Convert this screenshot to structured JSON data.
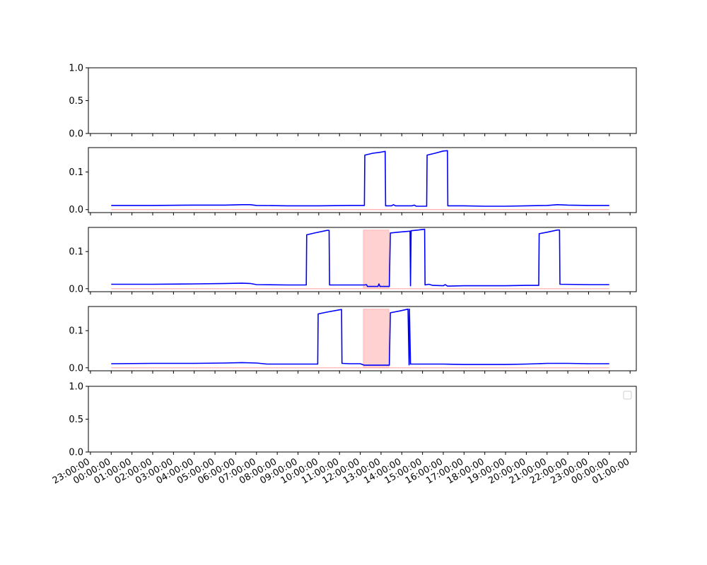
{
  "chart_data": {
    "type": "line",
    "shared_x": true,
    "x_tick_labels": [
      "23:00:00",
      "00:00:00",
      "01:00:00",
      "02:00:00",
      "03:00:00",
      "04:00:00",
      "05:00:00",
      "06:00:00",
      "07:00:00",
      "08:00:00",
      "09:00:00",
      "10:00:00",
      "11:00:00",
      "12:00:00",
      "13:00:00",
      "14:00:00",
      "15:00:00",
      "16:00:00",
      "17:00:00",
      "18:00:00",
      "19:00:00",
      "20:00:00",
      "21:00:00",
      "22:00:00",
      "23:00:00",
      "00:00:00",
      "01:00:00"
    ],
    "x_tick_rotation_deg": 30,
    "xlim_hours": [
      -1.1,
      25.3
    ],
    "line_color": "#0000ff",
    "baseline_color": "#ffaaaa",
    "shade_color": "#ff9999",
    "panels": [
      {
        "id": "panel-1",
        "empty": true,
        "ylim": [
          0,
          1
        ],
        "y_ticks": [
          0,
          0.5,
          1
        ],
        "y_tick_labels": [
          "0.0",
          "0.5",
          "1.0"
        ]
      },
      {
        "id": "panel-2",
        "ylim": [
          -0.008,
          0.165
        ],
        "y_ticks": [
          0,
          0.1
        ],
        "y_tick_labels": [
          "0.0",
          "0.1"
        ],
        "baseline": 0,
        "series": [
          {
            "color": "#0000ff",
            "points": [
              [
                0,
                0.011
              ],
              [
                2,
                0.011
              ],
              [
                4,
                0.012
              ],
              [
                5.5,
                0.012
              ],
              [
                6.3,
                0.013
              ],
              [
                6.7,
                0.013
              ],
              [
                7,
                0.011
              ],
              [
                8.5,
                0.01
              ],
              [
                10,
                0.01
              ],
              [
                11.5,
                0.011
              ],
              [
                12.2,
                0.011
              ],
              [
                12.22,
                0.145
              ],
              [
                12.6,
                0.15
              ],
              [
                13,
                0.153
              ],
              [
                13.2,
                0.155
              ],
              [
                13.22,
                0.01
              ],
              [
                13.5,
                0.01
              ],
              [
                13.6,
                0.013
              ],
              [
                13.7,
                0.01
              ],
              [
                14.5,
                0.01
              ],
              [
                14.6,
                0.012
              ],
              [
                14.7,
                0.009
              ],
              [
                15.2,
                0.009
              ],
              [
                15.22,
                0.145
              ],
              [
                15.6,
                0.15
              ],
              [
                16,
                0.156
              ],
              [
                16.2,
                0.157
              ],
              [
                16.22,
                0.01
              ],
              [
                17,
                0.01
              ],
              [
                18,
                0.009
              ],
              [
                19,
                0.009
              ],
              [
                20,
                0.01
              ],
              [
                21,
                0.011
              ],
              [
                21.5,
                0.013
              ],
              [
                22,
                0.012
              ],
              [
                23,
                0.011
              ],
              [
                24,
                0.011
              ]
            ]
          }
        ],
        "shaded": []
      },
      {
        "id": "panel-3",
        "ylim": [
          -0.008,
          0.165
        ],
        "y_ticks": [
          0,
          0.1
        ],
        "y_tick_labels": [
          "0.0",
          "0.1"
        ],
        "baseline": 0,
        "series": [
          {
            "color": "#0000ff",
            "points": [
              [
                0,
                0.012
              ],
              [
                2,
                0.012
              ],
              [
                4,
                0.013
              ],
              [
                5.5,
                0.014
              ],
              [
                6.3,
                0.015
              ],
              [
                6.7,
                0.014
              ],
              [
                7,
                0.011
              ],
              [
                8.5,
                0.01
              ],
              [
                9.4,
                0.01
              ],
              [
                9.42,
                0.145
              ],
              [
                9.8,
                0.15
              ],
              [
                10.4,
                0.157
              ],
              [
                10.5,
                0.157
              ],
              [
                10.52,
                0.01
              ],
              [
                11,
                0.01
              ],
              [
                12.2,
                0.01
              ],
              [
                12.3,
                0.011
              ],
              [
                12.35,
                0.006
              ],
              [
                12.85,
                0.006
              ],
              [
                12.9,
                0.013
              ],
              [
                12.95,
                0.006
              ],
              [
                13.4,
                0.006
              ],
              [
                13.45,
                0.15
              ],
              [
                13.8,
                0.152
              ],
              [
                14.2,
                0.154
              ],
              [
                14.4,
                0.155
              ],
              [
                14.42,
                0.008
              ],
              [
                14.45,
                0.156
              ],
              [
                14.8,
                0.158
              ],
              [
                15.1,
                0.16
              ],
              [
                15.12,
                0.01
              ],
              [
                15.3,
                0.012
              ],
              [
                15.5,
                0.009
              ],
              [
                16,
                0.008
              ],
              [
                16.1,
                0.011
              ],
              [
                16.2,
                0.007
              ],
              [
                17,
                0.008
              ],
              [
                18,
                0.008
              ],
              [
                19,
                0.008
              ],
              [
                20,
                0.009
              ],
              [
                20.6,
                0.009
              ],
              [
                20.62,
                0.148
              ],
              [
                21,
                0.152
              ],
              [
                21.5,
                0.158
              ],
              [
                21.6,
                0.158
              ],
              [
                21.62,
                0.012
              ],
              [
                23,
                0.011
              ],
              [
                24,
                0.011
              ]
            ]
          }
        ],
        "shaded": [
          {
            "x_start": 12.15,
            "x_end": 13.38,
            "y_top": 0.158
          }
        ]
      },
      {
        "id": "panel-4",
        "ylim": [
          -0.008,
          0.165
        ],
        "y_ticks": [
          0,
          0.1
        ],
        "y_tick_labels": [
          "0.0",
          "0.1"
        ],
        "baseline": 0,
        "series": [
          {
            "color": "#0000ff",
            "points": [
              [
                0,
                0.011
              ],
              [
                2,
                0.012
              ],
              [
                4,
                0.012
              ],
              [
                5.5,
                0.013
              ],
              [
                6.3,
                0.014
              ],
              [
                7,
                0.013
              ],
              [
                7.5,
                0.01
              ],
              [
                9,
                0.01
              ],
              [
                9.95,
                0.01
              ],
              [
                9.97,
                0.145
              ],
              [
                10.4,
                0.15
              ],
              [
                11,
                0.156
              ],
              [
                11.1,
                0.157
              ],
              [
                11.12,
                0.012
              ],
              [
                11.5,
                0.011
              ],
              [
                12,
                0.011
              ],
              [
                12.2,
                0.007
              ],
              [
                13.4,
                0.007
              ],
              [
                13.45,
                0.148
              ],
              [
                13.9,
                0.153
              ],
              [
                14.3,
                0.158
              ],
              [
                14.35,
                0.008
              ],
              [
                14.37,
                0.158
              ],
              [
                14.42,
                0.01
              ],
              [
                15,
                0.01
              ],
              [
                16,
                0.01
              ],
              [
                17,
                0.009
              ],
              [
                18,
                0.009
              ],
              [
                19,
                0.009
              ],
              [
                20,
                0.01
              ],
              [
                21,
                0.012
              ],
              [
                22,
                0.012
              ],
              [
                23,
                0.011
              ],
              [
                24,
                0.011
              ]
            ]
          }
        ],
        "shaded": [
          {
            "x_start": 12.15,
            "x_end": 13.38,
            "y_top": 0.158
          }
        ]
      },
      {
        "id": "panel-5",
        "empty": true,
        "ylim": [
          0,
          1
        ],
        "y_ticks": [
          0,
          0.5,
          1
        ],
        "y_tick_labels": [
          "0.0",
          "0.5",
          "1.0"
        ],
        "legend": {
          "placement": "upper right",
          "entries": []
        }
      }
    ]
  }
}
